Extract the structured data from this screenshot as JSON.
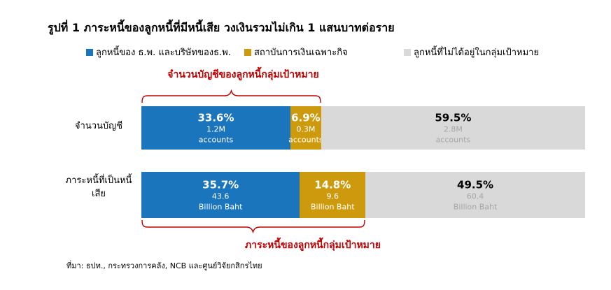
{
  "title": "รูปที่ 1 ภาระหนี้ของลูกหนี้ที่มีหนี้เสีย วงเงินรวมไม่เกิน 1 แสนบาทต่อราย",
  "legend": [
    {
      "label": "ลูกหนี้ของ ธ.พ. และบริษัทของธ.พ.",
      "color": "#1B75BC"
    },
    {
      "label": "สถาบันการเงินเฉพาะกิจ",
      "color": "#CE9A0D"
    },
    {
      "label": "ลูกหนี้ที่ไม่ได้อยู่ในกลุ่มเป้าหมาย",
      "color": "#D9D9D9"
    }
  ],
  "annotations": {
    "top": "จำนวนบัญชีของลูกหนี้กลุ่มเป้าหมาย",
    "bottom": "ภาระหนี้ของลูกหนี้กลุ่มเป้าหมาย",
    "color": "#C00000"
  },
  "source": "ที่มา: ธปท., กระทรวงการคลัง, NCB และศูนย์วิจัยกสิกรไทย",
  "chart_data": {
    "type": "bar",
    "orientation": "horizontal",
    "stacked": true,
    "xlim": [
      0,
      100
    ],
    "grid": false,
    "legend_position": "top",
    "categories": [
      "จำนวนบัญชี",
      "ภาระหนี้ที่เป็นหนี้เสีย"
    ],
    "series": [
      {
        "name": "ลูกหนี้ของ ธ.พ. และบริษัทของธ.พ.",
        "color": "#1B75BC",
        "values": [
          33.6,
          35.7
        ]
      },
      {
        "name": "สถาบันการเงินเฉพาะกิจ",
        "color": "#CE9A0D",
        "values": [
          6.9,
          14.8
        ]
      },
      {
        "name": "ลูกหนี้ที่ไม่ได้อยู่ในกลุ่มเป้าหมาย",
        "color": "#D9D9D9",
        "values": [
          59.5,
          49.5
        ]
      }
    ],
    "rows": [
      {
        "category": "จำนวนบัญชี",
        "segments": [
          {
            "series": "ลูกหนี้ของ ธ.พ. และบริษัทของธ.พ.",
            "pct": 33.6,
            "pct_label": "33.6%",
            "value_label": "1.2M",
            "unit_label": "accounts"
          },
          {
            "series": "สถาบันการเงินเฉพาะกิจ",
            "pct": 6.9,
            "pct_label": "6.9%",
            "value_label": "0.3M",
            "unit_label": "accounts"
          },
          {
            "series": "ลูกหนี้ที่ไม่ได้อยู่ในกลุ่มเป้าหมาย",
            "pct": 59.5,
            "pct_label": "59.5%",
            "value_label": "2.8M",
            "unit_label": "accounts"
          }
        ]
      },
      {
        "category": "ภาระหนี้ที่เป็นหนี้เสีย",
        "segments": [
          {
            "series": "ลูกหนี้ของ ธ.พ. และบริษัทของธ.พ.",
            "pct": 35.7,
            "pct_label": "35.7%",
            "value_label": "43.6",
            "unit_label": "Billion Baht"
          },
          {
            "series": "สถาบันการเงินเฉพาะกิจ",
            "pct": 14.8,
            "pct_label": "14.8%",
            "value_label": "9.6",
            "unit_label": "Billion Baht"
          },
          {
            "series": "ลูกหนี้ที่ไม่ได้อยู่ในกลุ่มเป้าหมาย",
            "pct": 49.5,
            "pct_label": "49.5%",
            "value_label": "60.4",
            "unit_label": "Billion Baht"
          }
        ]
      }
    ]
  }
}
